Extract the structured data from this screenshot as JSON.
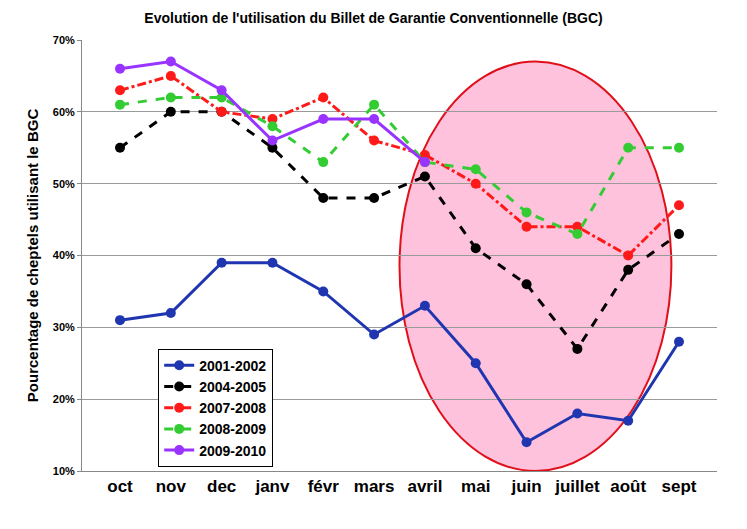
{
  "chart_data": {
    "type": "line",
    "title": "Evolution de l'utilisation du Billet de Garantie Conventionnelle (BGC)",
    "y_label": "Pourcentage de cheptels utilisant le BGC",
    "categories": [
      "oct",
      "nov",
      "dec",
      "janv",
      "févr",
      "mars",
      "avril",
      "mai",
      "juin",
      "juillet",
      "août",
      "sept"
    ],
    "series": [
      {
        "name": "2001-2002",
        "color": "#1f36b0",
        "line_style": "solid",
        "marker": "circle",
        "values": [
          31,
          32,
          39,
          39,
          35,
          29,
          33,
          25,
          14,
          18,
          17,
          28
        ]
      },
      {
        "name": "2004-2005",
        "color": "#000000",
        "line_style": "dash",
        "marker": "circle",
        "values": [
          55,
          60,
          60,
          55,
          48,
          48,
          51,
          41,
          36,
          27,
          38,
          43
        ]
      },
      {
        "name": "2007-2008",
        "color": "#ff1a1a",
        "line_style": "dashdot",
        "marker": "circle",
        "values": [
          63,
          65,
          60,
          59,
          62,
          56,
          54,
          50,
          44,
          44,
          40,
          47
        ]
      },
      {
        "name": "2008-2009",
        "color": "#33cc33",
        "line_style": "dash",
        "marker": "circle",
        "values": [
          61,
          62,
          62,
          58,
          53,
          61,
          53,
          52,
          46,
          43,
          55,
          55
        ]
      },
      {
        "name": "2009-2010",
        "color": "#9933ff",
        "line_style": "solid",
        "marker": "circle",
        "values": [
          66,
          67,
          63,
          56,
          59,
          59,
          53,
          null,
          null,
          null,
          null,
          null
        ]
      }
    ],
    "ylim": [
      10,
      70
    ],
    "yticks": [
      {
        "value": 10,
        "label": "10%"
      },
      {
        "value": 20,
        "label": "20%"
      },
      {
        "value": 30,
        "label": "30%"
      },
      {
        "value": 40,
        "label": "40%"
      },
      {
        "value": 50,
        "label": "50%"
      },
      {
        "value": 60,
        "label": "60%"
      },
      {
        "value": 70,
        "label": "70%"
      }
    ],
    "grid": true,
    "legend": "lower left"
  }
}
